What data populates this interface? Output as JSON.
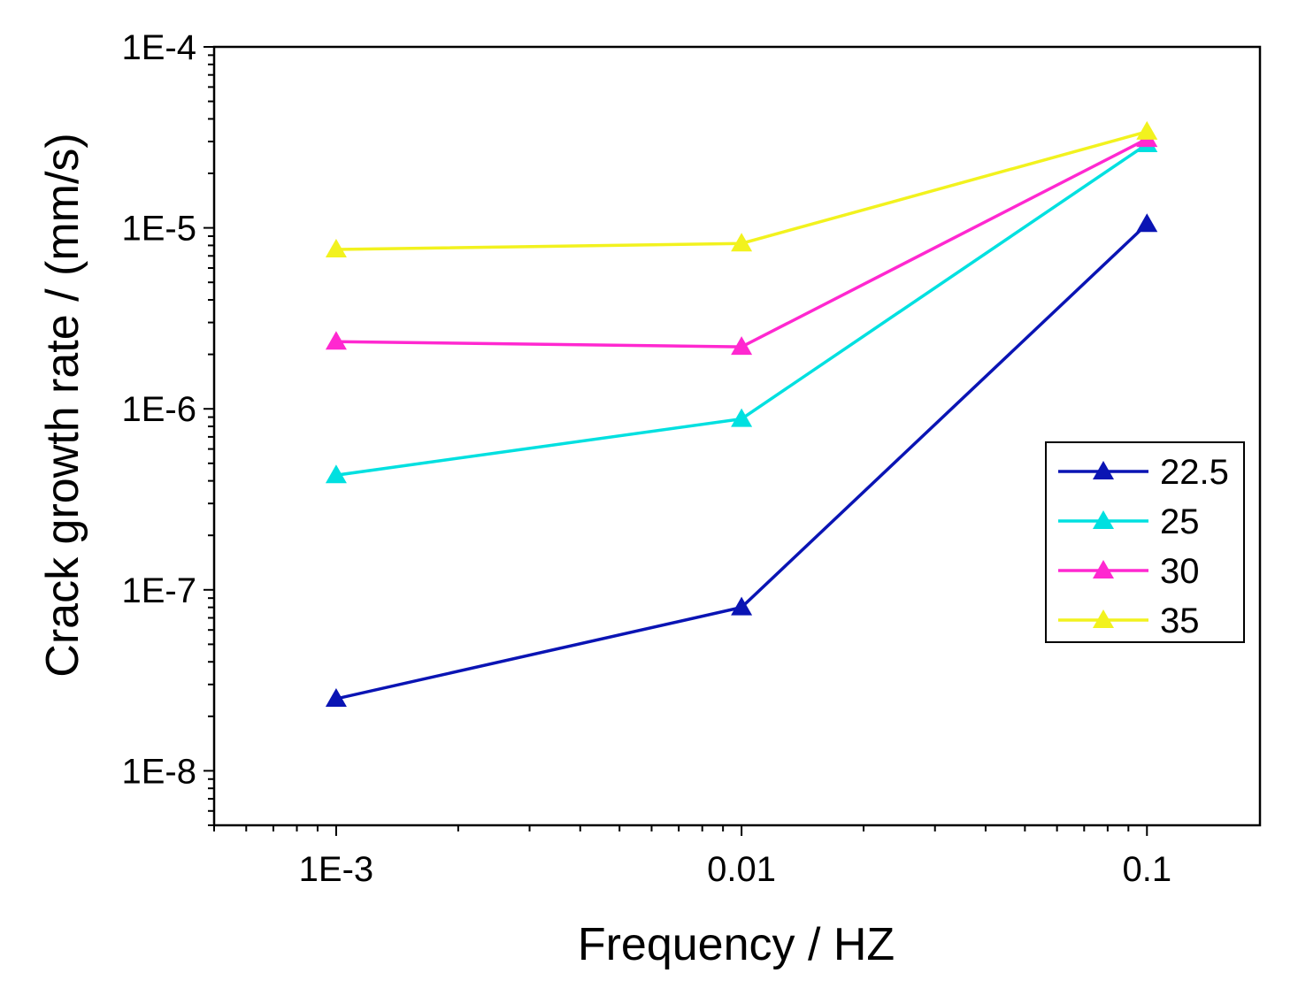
{
  "chart_data": {
    "type": "line",
    "title": "",
    "xlabel": "Frequency / HZ",
    "ylabel": "Crack growth rate / (mm/s)",
    "xscale": "log",
    "yscale": "log",
    "xlim": [
      0.0005,
      0.19
    ],
    "ylim": [
      5e-09,
      0.0001
    ],
    "x": [
      0.001,
      0.01,
      0.1
    ],
    "x_tick_values": [
      0.001,
      0.01,
      0.1
    ],
    "x_tick_labels": [
      "1E-3",
      "0.01",
      "0.1"
    ],
    "y_tick_values": [
      1e-08,
      1e-07,
      1e-06,
      1e-05,
      0.0001
    ],
    "y_tick_labels": [
      "1E-8",
      "1E-7",
      "1E-6",
      "1E-5",
      "1E-4"
    ],
    "legend_position": "right",
    "marker": "triangle",
    "series": [
      {
        "name": "22.5",
        "color": "#0a14b4",
        "values": [
          2.5e-08,
          8e-08,
          1.05e-05
        ]
      },
      {
        "name": "25",
        "color": "#00e0e0",
        "values": [
          4.3e-07,
          8.8e-07,
          2.9e-05
        ]
      },
      {
        "name": "30",
        "color": "#ff28d0",
        "values": [
          2.35e-06,
          2.2e-06,
          3.1e-05
        ]
      },
      {
        "name": "35",
        "color": "#f2f21e",
        "values": [
          7.6e-06,
          8.2e-06,
          3.4e-05
        ]
      }
    ]
  }
}
